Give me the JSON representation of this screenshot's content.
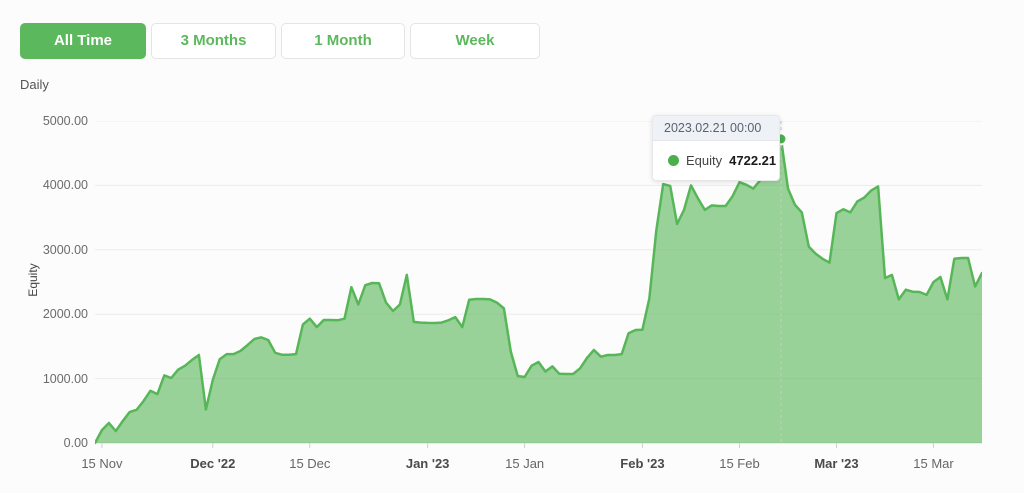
{
  "tabs": {
    "items": [
      {
        "label": "All Time",
        "active": true
      },
      {
        "label": "3 Months",
        "active": false
      },
      {
        "label": "1 Month",
        "active": false
      },
      {
        "label": "Week",
        "active": false
      }
    ]
  },
  "period_label": "Daily",
  "tooltip": {
    "date": "2023.02.21 00:00",
    "series": "Equity",
    "value": "4722.21"
  },
  "colors": {
    "accent_green": "#5cb85c",
    "area_fill": "rgba(92,184,92,0.62)",
    "line_stroke": "#57b657",
    "marker": "#4cae4f",
    "grid": "#ececec",
    "axis_line": "#dcdcdc",
    "crosshair": "#c9c9c9"
  },
  "chart_data": {
    "type": "area",
    "title": "",
    "xlabel": "",
    "ylabel": "Equity",
    "ylim": [
      0,
      5000
    ],
    "grid": true,
    "legend": false,
    "y_ticks": [
      "0.00",
      "1000.00",
      "2000.00",
      "3000.00",
      "4000.00",
      "5000.00"
    ],
    "x_ticks": [
      {
        "label": "15 Nov",
        "day": 1,
        "bold": false
      },
      {
        "label": "Dec '22",
        "day": 17,
        "bold": true
      },
      {
        "label": "15 Dec",
        "day": 31,
        "bold": false
      },
      {
        "label": "Jan '23",
        "day": 48,
        "bold": true
      },
      {
        "label": "15 Jan",
        "day": 62,
        "bold": false
      },
      {
        "label": "Feb '23",
        "day": 79,
        "bold": true
      },
      {
        "label": "15 Feb",
        "day": 93,
        "bold": false
      },
      {
        "label": "Mar '23",
        "day": 107,
        "bold": true
      },
      {
        "label": "15 Mar",
        "day": 121,
        "bold": false
      }
    ],
    "highlight_index": 99,
    "highlight": {
      "date": "2023.02.21 00:00",
      "value": 4722.21
    },
    "series": [
      {
        "name": "Equity",
        "color": "#5cb85c",
        "start_date": "2022.11.14",
        "interval": "daily",
        "values": [
          0,
          200,
          310,
          185,
          340,
          480,
          515,
          650,
          810,
          760,
          1050,
          1010,
          1140,
          1200,
          1290,
          1366,
          520,
          980,
          1300,
          1380,
          1380,
          1430,
          1520,
          1615,
          1640,
          1600,
          1400,
          1370,
          1370,
          1380,
          1840,
          1930,
          1800,
          1910,
          1910,
          1905,
          1930,
          2420,
          2150,
          2450,
          2485,
          2480,
          2180,
          2050,
          2150,
          2610,
          1880,
          1870,
          1865,
          1864,
          1870,
          1905,
          1955,
          1800,
          2225,
          2236,
          2236,
          2230,
          2180,
          2090,
          1420,
          1040,
          1025,
          1200,
          1258,
          1110,
          1190,
          1075,
          1072,
          1072,
          1160,
          1320,
          1444,
          1340,
          1366,
          1366,
          1380,
          1705,
          1755,
          1760,
          2250,
          3300,
          4020,
          3990,
          3400,
          3620,
          4000,
          3800,
          3620,
          3690,
          3680,
          3680,
          3830,
          4050,
          4010,
          3950,
          4080,
          4150,
          4380,
          4722.21,
          3950,
          3700,
          3580,
          3050,
          2940,
          2860,
          2800,
          3570,
          3630,
          3580,
          3750,
          3810,
          3920,
          3985,
          2560,
          2610,
          2230,
          2380,
          2350,
          2345,
          2300,
          2500,
          2578,
          2230,
          2860,
          2873,
          2873,
          2430,
          2640
        ]
      }
    ]
  }
}
